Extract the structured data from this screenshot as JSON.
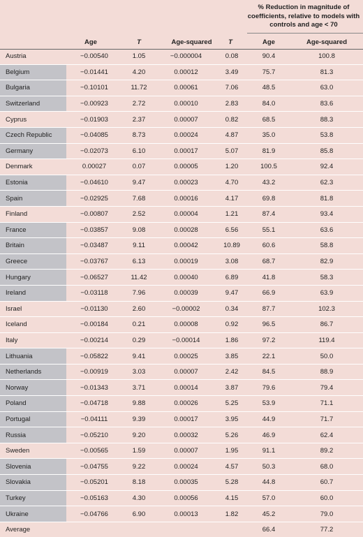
{
  "header": {
    "group_label": "% Reduction in magnitude of coefficients, relative to models with controls and age < 70",
    "columns": [
      "Age",
      "T",
      "Age-squared",
      "T",
      "Age",
      "Age-squared"
    ]
  },
  "rows": [
    {
      "country": "Austria",
      "shaded": false,
      "c": [
        "−0.00540",
        "1.05",
        "−0.000004",
        "0.08",
        "90.4",
        "100.8"
      ]
    },
    {
      "country": "Belgium",
      "shaded": true,
      "c": [
        "−0.01441",
        "4.20",
        "0.00012",
        "3.49",
        "75.7",
        "81.3"
      ]
    },
    {
      "country": "Bulgaria",
      "shaded": true,
      "c": [
        "−0.10101",
        "11.72",
        "0.00061",
        "7.06",
        "48.5",
        "63.0"
      ]
    },
    {
      "country": "Switzerland",
      "shaded": true,
      "c": [
        "−0.00923",
        "2.72",
        "0.00010",
        "2.83",
        "84.0",
        "83.6"
      ]
    },
    {
      "country": "Cyprus",
      "shaded": false,
      "c": [
        "−0.01903",
        "2.37",
        "0.00007",
        "0.82",
        "68.5",
        "88.3"
      ]
    },
    {
      "country": "Czech Republic",
      "shaded": true,
      "c": [
        "−0.04085",
        "8.73",
        "0.00024",
        "4.87",
        "35.0",
        "53.8"
      ]
    },
    {
      "country": "Germany",
      "shaded": true,
      "c": [
        "−0.02073",
        "6.10",
        "0.00017",
        "5.07",
        "81.9",
        "85.8"
      ]
    },
    {
      "country": "Denmark",
      "shaded": false,
      "c": [
        "0.00027",
        "0.07",
        "0.00005",
        "1.20",
        "100.5",
        "92.4"
      ]
    },
    {
      "country": "Estonia",
      "shaded": true,
      "c": [
        "−0.04610",
        "9.47",
        "0.00023",
        "4.70",
        "43.2",
        "62.3"
      ]
    },
    {
      "country": "Spain",
      "shaded": true,
      "c": [
        "−0.02925",
        "7.68",
        "0.00016",
        "4.17",
        "69.8",
        "81.8"
      ]
    },
    {
      "country": "Finland",
      "shaded": false,
      "c": [
        "−0.00807",
        "2.52",
        "0.00004",
        "1.21",
        "87.4",
        "93.4"
      ]
    },
    {
      "country": "France",
      "shaded": true,
      "c": [
        "−0.03857",
        "9.08",
        "0.00028",
        "6.56",
        "55.1",
        "63.6"
      ]
    },
    {
      "country": "Britain",
      "shaded": true,
      "c": [
        "−0.03487",
        "9.11",
        "0.00042",
        "10.89",
        "60.6",
        "58.8"
      ]
    },
    {
      "country": "Greece",
      "shaded": true,
      "c": [
        "−0.03767",
        "6.13",
        "0.00019",
        "3.08",
        "68.7",
        "82.9"
      ]
    },
    {
      "country": "Hungary",
      "shaded": true,
      "c": [
        "−0.06527",
        "11.42",
        "0.00040",
        "6.89",
        "41.8",
        "58.3"
      ]
    },
    {
      "country": "Ireland",
      "shaded": true,
      "c": [
        "−0.03118",
        "7.96",
        "0.00039",
        "9.47",
        "66.9",
        "63.9"
      ]
    },
    {
      "country": "Israel",
      "shaded": false,
      "c": [
        "−0.01130",
        "2.60",
        "−0.00002",
        "0.34",
        "87.7",
        "102.3"
      ]
    },
    {
      "country": "Iceland",
      "shaded": false,
      "c": [
        "−0.00184",
        "0.21",
        "0.00008",
        "0.92",
        "96.5",
        "86.7"
      ]
    },
    {
      "country": "Italy",
      "shaded": false,
      "c": [
        "−0.00214",
        "0.29",
        "−0.00014",
        "1.86",
        "97.2",
        "119.4"
      ]
    },
    {
      "country": "Lithuania",
      "shaded": true,
      "c": [
        "−0.05822",
        "9.41",
        "0.00025",
        "3.85",
        "22.1",
        "50.0"
      ]
    },
    {
      "country": "Netherlands",
      "shaded": true,
      "c": [
        "−0.00919",
        "3.03",
        "0.00007",
        "2.42",
        "84.5",
        "88.9"
      ]
    },
    {
      "country": "Norway",
      "shaded": true,
      "c": [
        "−0.01343",
        "3.71",
        "0.00014",
        "3.87",
        "79.6",
        "79.4"
      ]
    },
    {
      "country": "Poland",
      "shaded": true,
      "c": [
        "−0.04718",
        "9.88",
        "0.00026",
        "5.25",
        "53.9",
        "71.1"
      ]
    },
    {
      "country": "Portugal",
      "shaded": true,
      "c": [
        "−0.04111",
        "9.39",
        "0.00017",
        "3.95",
        "44.9",
        "71.7"
      ]
    },
    {
      "country": "Russia",
      "shaded": true,
      "c": [
        "−0.05210",
        "9.20",
        "0.00032",
        "5.26",
        "46.9",
        "62.4"
      ]
    },
    {
      "country": "Sweden",
      "shaded": false,
      "c": [
        "−0.00565",
        "1.59",
        "0.00007",
        "1.95",
        "91.1",
        "89.2"
      ]
    },
    {
      "country": "Slovenia",
      "shaded": true,
      "c": [
        "−0.04755",
        "9.22",
        "0.00024",
        "4.57",
        "50.3",
        "68.0"
      ]
    },
    {
      "country": "Slovakia",
      "shaded": true,
      "c": [
        "−0.05201",
        "8.18",
        "0.00035",
        "5.28",
        "44.8",
        "60.7"
      ]
    },
    {
      "country": "Turkey",
      "shaded": true,
      "c": [
        "−0.05163",
        "4.30",
        "0.00056",
        "4.15",
        "57.0",
        "60.0"
      ]
    },
    {
      "country": "Ukraine",
      "shaded": true,
      "c": [
        "−0.04766",
        "6.90",
        "0.00013",
        "1.82",
        "45.2",
        "79.0"
      ]
    },
    {
      "country": "Average",
      "shaded": false,
      "c": [
        "",
        "",
        "",
        "",
        "66.4",
        "77.2"
      ]
    }
  ]
}
